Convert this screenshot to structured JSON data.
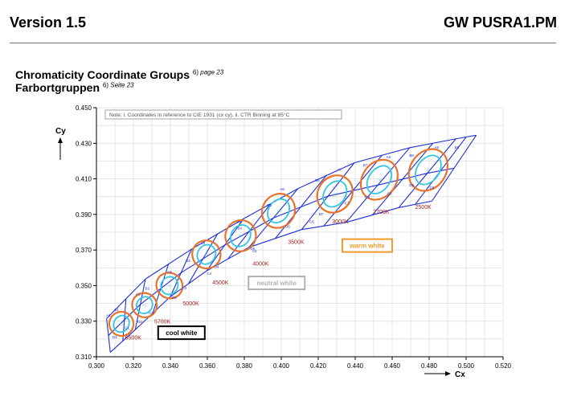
{
  "header": {
    "left": "Version 1.5",
    "right": "GW PUSRA1.PM"
  },
  "titles": [
    {
      "text": "Chromaticity Coordinate Groups",
      "sup": "6)",
      "ref": "page 23"
    },
    {
      "text": "Farbortgruppen",
      "sup": "6)",
      "ref": "Seite 23"
    }
  ],
  "chart_data": {
    "type": "scatter",
    "note": "Note: i. Coordinates in reference to CIE 1931 (cx cy), ii. CTR Binning at 85°C",
    "xlabel": "Cx",
    "ylabel": "Cy",
    "xlim": [
      0.3,
      0.52
    ],
    "ylim": [
      0.31,
      0.45
    ],
    "x_ticks": [
      "0.300",
      "0.320",
      "0.340",
      "0.360",
      "0.380",
      "0.400",
      "0.420",
      "0.440",
      "0.460",
      "0.480",
      "0.500",
      "0.520"
    ],
    "y_ticks": [
      "0.310",
      "0.330",
      "0.350",
      "0.370",
      "0.390",
      "0.410",
      "0.430",
      "0.450"
    ],
    "grid": true,
    "region_labels": [
      {
        "text": "cool white",
        "x": 0.346,
        "y": 0.3235,
        "color": "#000000"
      },
      {
        "text": "neutral white",
        "x": 0.3975,
        "y": 0.3515,
        "color": "#b0b0b0"
      },
      {
        "text": "warm white",
        "x": 0.4465,
        "y": 0.3725,
        "color": "#f39a2a"
      }
    ],
    "cct_labels": [
      {
        "text": "6500K",
        "x": 0.3155,
        "y": 0.3197
      },
      {
        "text": "5700K",
        "x": 0.3313,
        "y": 0.3288
      },
      {
        "text": "5000K",
        "x": 0.3467,
        "y": 0.3388
      },
      {
        "text": "4500K",
        "x": 0.3627,
        "y": 0.3507
      },
      {
        "text": "4000K",
        "x": 0.3845,
        "y": 0.3612
      },
      {
        "text": "3500K",
        "x": 0.4036,
        "y": 0.3734
      },
      {
        "text": "3000K",
        "x": 0.4275,
        "y": 0.3849
      },
      {
        "text": "2700K",
        "x": 0.4497,
        "y": 0.3905
      },
      {
        "text": "2500K",
        "x": 0.4724,
        "y": 0.3931
      }
    ],
    "ellipses": [
      {
        "x": 0.3135,
        "y": 0.3285,
        "rx": 0.0065,
        "ry": 0.0068,
        "angle": -58,
        "label": "T1"
      },
      {
        "x": 0.326,
        "y": 0.339,
        "rx": 0.0065,
        "ry": 0.007,
        "angle": -58,
        "label": "T2"
      },
      {
        "x": 0.3395,
        "y": 0.35,
        "rx": 0.0068,
        "ry": 0.0075,
        "angle": -58,
        "label": "T3"
      },
      {
        "x": 0.3595,
        "y": 0.3675,
        "rx": 0.0075,
        "ry": 0.008,
        "angle": -57,
        "label": "T4"
      },
      {
        "x": 0.378,
        "y": 0.378,
        "rx": 0.0085,
        "ry": 0.0085,
        "angle": -57,
        "label": "T5"
      },
      {
        "x": 0.3985,
        "y": 0.392,
        "rx": 0.0095,
        "ry": 0.009,
        "angle": -55,
        "label": "T6"
      },
      {
        "x": 0.429,
        "y": 0.4015,
        "rx": 0.0105,
        "ry": 0.0095,
        "angle": -55,
        "label": "T7"
      },
      {
        "x": 0.453,
        "y": 0.4095,
        "rx": 0.0115,
        "ry": 0.0095,
        "angle": -55,
        "label": "T8"
      },
      {
        "x": 0.4795,
        "y": 0.415,
        "rx": 0.012,
        "ry": 0.01,
        "angle": -55,
        "label": "T9"
      }
    ],
    "bins": [
      {
        "text": "A1",
        "x": 0.3065,
        "y": 0.3325
      },
      {
        "text": "B1",
        "x": 0.311,
        "y": 0.3357
      },
      {
        "text": "C1",
        "x": 0.3165,
        "y": 0.3255
      },
      {
        "text": "D1",
        "x": 0.31,
        "y": 0.3205
      },
      {
        "text": "A2",
        "x": 0.3225,
        "y": 0.3445
      },
      {
        "text": "B2",
        "x": 0.3275,
        "y": 0.3478
      },
      {
        "text": "C2",
        "x": 0.3295,
        "y": 0.334
      },
      {
        "text": "D2",
        "x": 0.3235,
        "y": 0.329
      },
      {
        "text": "A3",
        "x": 0.3395,
        "y": 0.357
      },
      {
        "text": "B3",
        "x": 0.3495,
        "y": 0.3632
      },
      {
        "text": "C3",
        "x": 0.3475,
        "y": 0.348
      },
      {
        "text": "D3",
        "x": 0.342,
        "y": 0.3425
      },
      {
        "text": "A4",
        "x": 0.3575,
        "y": 0.373
      },
      {
        "text": "B4",
        "x": 0.3775,
        "y": 0.3815
      },
      {
        "text": "C4",
        "x": 0.361,
        "y": 0.356
      },
      {
        "text": "D4",
        "x": 0.365,
        "y": 0.36
      },
      {
        "text": "A5",
        "x": 0.3775,
        "y": 0.385
      },
      {
        "text": "B5",
        "x": 0.3935,
        "y": 0.3945
      },
      {
        "text": "C5",
        "x": 0.3855,
        "y": 0.3688
      },
      {
        "text": "D5",
        "x": 0.3845,
        "y": 0.37
      },
      {
        "text": "A6",
        "x": 0.4005,
        "y": 0.4035
      },
      {
        "text": "B6",
        "x": 0.4195,
        "y": 0.4085
      },
      {
        "text": "C6",
        "x": 0.4165,
        "y": 0.3853
      },
      {
        "text": "D6",
        "x": 0.4035,
        "y": 0.3825
      },
      {
        "text": "A7",
        "x": 0.4315,
        "y": 0.4145
      },
      {
        "text": "B7",
        "x": 0.4455,
        "y": 0.417
      },
      {
        "text": "C7",
        "x": 0.4355,
        "y": 0.3955
      },
      {
        "text": "D7",
        "x": 0.4215,
        "y": 0.3895
      },
      {
        "text": "A8",
        "x": 0.458,
        "y": 0.4215
      },
      {
        "text": "B8",
        "x": 0.4705,
        "y": 0.4225
      },
      {
        "text": "C8",
        "x": 0.4585,
        "y": 0.401
      },
      {
        "text": "D8",
        "x": 0.4465,
        "y": 0.399
      },
      {
        "text": "A9",
        "x": 0.484,
        "y": 0.427
      },
      {
        "text": "B9",
        "x": 0.495,
        "y": 0.427
      },
      {
        "text": "C9",
        "x": 0.4815,
        "y": 0.4045
      },
      {
        "text": "D9",
        "x": 0.4705,
        "y": 0.4058
      }
    ],
    "colors": {
      "outline": "#1f2fd6",
      "ellipse": "#e8742c",
      "inner": "#35c6df",
      "cct": "#a32020",
      "grid": "#dadada"
    }
  }
}
